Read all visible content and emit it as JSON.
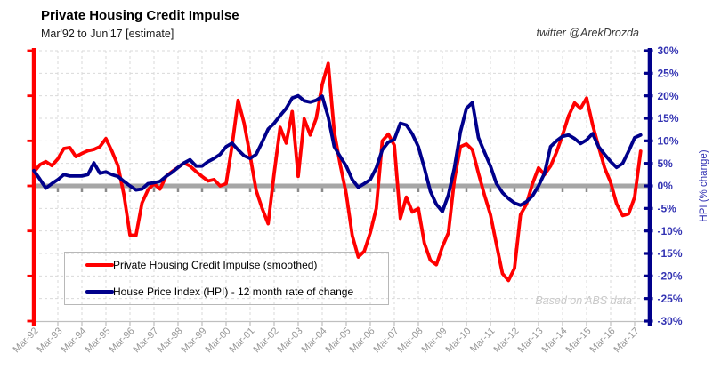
{
  "header": {
    "title": "Private Housing Credit Impulse",
    "subtitle": "Mar'92 to Jun'17 [estimate]",
    "credit": "twitter @ArekDrozda"
  },
  "watermark": "Based on ABS data",
  "legend": {
    "items": [
      {
        "label": "Private Housing Credit Impulse (smoothed)",
        "color": "#ff0000"
      },
      {
        "label": "House Price Index (HPI) - 12 month rate of change",
        "color": "#00008b"
      }
    ]
  },
  "y_axis": {
    "title": "HPI (% change)",
    "tick_labels": [
      "30%",
      "25%",
      "20%",
      "15%",
      "10%",
      "5%",
      "0%",
      "-5%",
      "-10%",
      "-15%",
      "-20%",
      "-25%",
      "-30%"
    ],
    "min": -30,
    "max": 30,
    "tick_step": 5,
    "label_color": "#3333b3",
    "axis_color": "#00008b"
  },
  "x_axis": {
    "tick_labels": [
      "Mar-92",
      "Mar-93",
      "Mar-94",
      "Mar-95",
      "Mar-96",
      "Mar-97",
      "Mar-98",
      "Mar-99",
      "Mar-00",
      "Mar-01",
      "Mar-02",
      "Mar-03",
      "Mar-04",
      "Mar-05",
      "Mar-06",
      "Mar-07",
      "Mar-08",
      "Mar-09",
      "Mar-10",
      "Mar-11",
      "Mar-12",
      "Mar-13",
      "Mar-14",
      "Mar-15",
      "Mar-16",
      "Mar-17"
    ],
    "label_color": "#979797",
    "left_axis_color": "#ff0000"
  },
  "colors": {
    "gridline": "#d9d9d9",
    "zero_line": "#a6a6a6",
    "bottom_line": "#bfbfbf"
  },
  "chart_data": {
    "type": "line",
    "title": "Private Housing Credit Impulse",
    "x_start": "Mar-1992",
    "x_end": "Jun-2017",
    "frequency": "quarterly",
    "ylim": [
      -30,
      30
    ],
    "grid": true,
    "legend_position": "bottom-left-box",
    "ylabel_right": "HPI (% change)",
    "series": [
      {
        "name": "Private Housing Credit Impulse (smoothed)",
        "color": "#ff0000",
        "values": [
          3.0,
          4.7,
          5.4,
          4.5,
          6.0,
          8.3,
          8.5,
          6.5,
          7.2,
          7.8,
          8.1,
          8.7,
          10.5,
          7.7,
          4.5,
          -2.0,
          -10.9,
          -11.0,
          -3.8,
          -0.9,
          0.5,
          -0.7,
          2.1,
          3.2,
          4.1,
          5.1,
          4.4,
          3.2,
          2.1,
          1.1,
          1.4,
          0.0,
          0.5,
          9.0,
          19.0,
          13.9,
          6.7,
          -1.0,
          -5.0,
          -8.4,
          2.8,
          13.0,
          9.5,
          16.5,
          2.1,
          14.9,
          11.3,
          15.0,
          22.5,
          27.2,
          12.0,
          4.7,
          -1.8,
          -11.0,
          -15.8,
          -14.5,
          -10.4,
          -5.0,
          10.0,
          11.5,
          9.0,
          -7.2,
          -2.5,
          -5.8,
          -5.0,
          -12.7,
          -16.5,
          -17.5,
          -13.5,
          -10.4,
          1.4,
          8.7,
          9.3,
          8.0,
          2.8,
          -2.0,
          -6.4,
          -13.0,
          -19.5,
          -21.0,
          -18.3,
          -6.4,
          -4.0,
          0.5,
          4.0,
          2.5,
          4.4,
          7.5,
          11.3,
          15.5,
          18.4,
          17.2,
          19.5,
          13.6,
          8.7,
          4.0,
          0.8,
          -4.0,
          -6.6,
          -6.2,
          -2.5,
          7.7
        ]
      },
      {
        "name": "House Price Index (HPI) - 12 month rate of change",
        "color": "#00008b",
        "values": [
          3.4,
          1.5,
          -0.5,
          0.5,
          1.4,
          2.5,
          2.2,
          2.2,
          2.2,
          2.5,
          5.1,
          2.8,
          3.1,
          2.5,
          2.1,
          1.0,
          0.0,
          -0.9,
          -0.7,
          0.5,
          0.7,
          1.0,
          2.1,
          3.0,
          4.1,
          5.1,
          5.8,
          4.4,
          4.4,
          5.4,
          6.1,
          7.0,
          8.7,
          9.5,
          8.0,
          6.7,
          6.1,
          7.0,
          9.7,
          12.6,
          13.9,
          15.6,
          17.2,
          19.5,
          20.0,
          18.9,
          18.6,
          19.0,
          19.9,
          15.3,
          8.7,
          6.5,
          4.4,
          1.4,
          -0.3,
          0.5,
          1.4,
          4.0,
          8.0,
          9.7,
          10.3,
          13.9,
          13.5,
          11.5,
          8.7,
          4.0,
          -1.2,
          -4.1,
          -5.7,
          -2.0,
          4.0,
          12.0,
          17.2,
          18.5,
          10.7,
          7.5,
          4.4,
          0.5,
          -1.5,
          -2.8,
          -3.8,
          -4.3,
          -3.5,
          -2.2,
          0.0,
          2.8,
          8.7,
          10.0,
          11.0,
          11.3,
          10.5,
          9.4,
          10.2,
          11.6,
          8.7,
          7.0,
          5.4,
          4.1,
          5.0,
          7.7,
          10.7,
          11.3
        ]
      }
    ]
  }
}
